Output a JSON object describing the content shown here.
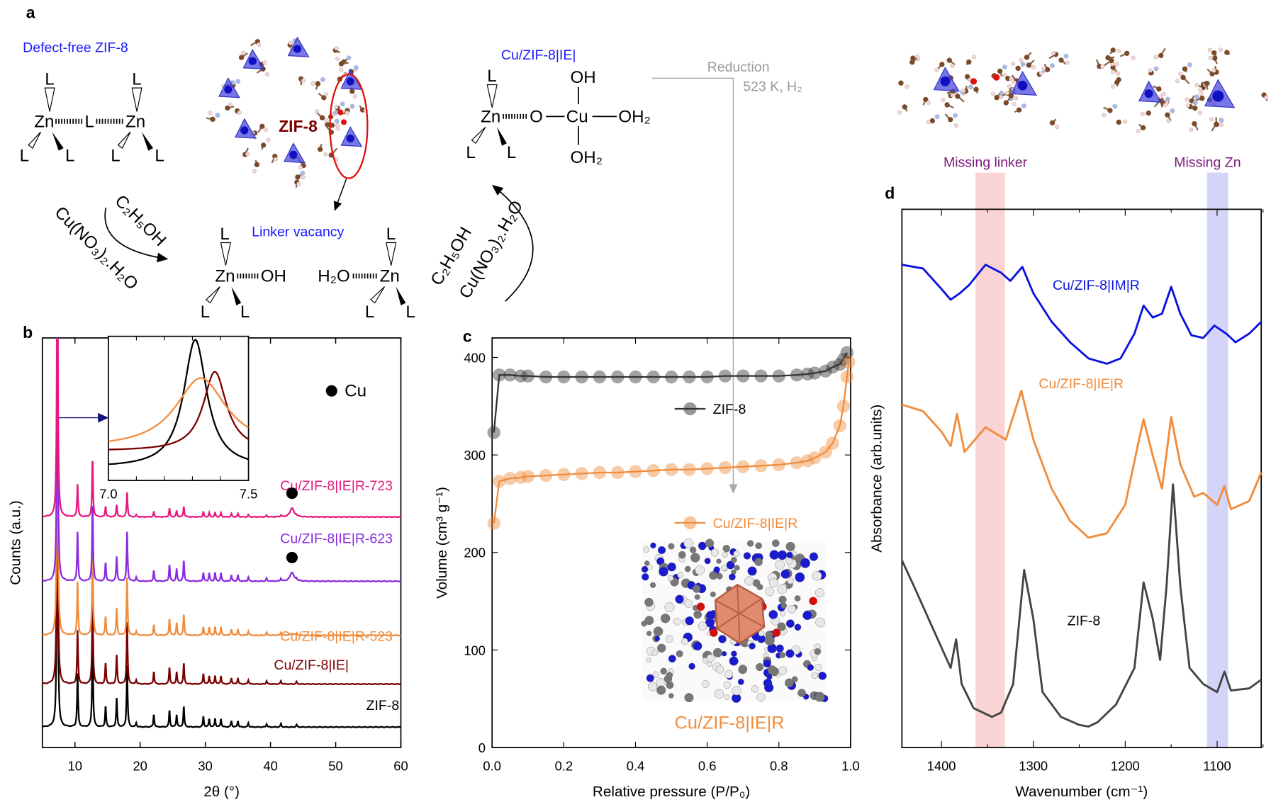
{
  "panels": {
    "a": "a",
    "b": "b",
    "c": "c",
    "d": "d"
  },
  "scheme": {
    "defect_free_title": "Defect-free ZIF-8",
    "zif8_label": "ZIF-8",
    "cu_ie_title": "Cu/ZIF-8|IE|",
    "linker_vacancy": "Linker vacancy",
    "reduction": "Reduction",
    "reduction_conditions": "523 K, H₂",
    "ethanol": "C₂H₅OH",
    "copper_nitrate": "Cu(NO₃)₂.H₂O",
    "zn": "Zn",
    "l": "L",
    "oh": "OH",
    "h2o": "H₂O",
    "o": "O",
    "cu": "Cu",
    "oh2": "OH₂",
    "missing_linker": "Missing linker",
    "missing_zn": "Missing Zn",
    "colors": {
      "blue_text": "#1a1aff",
      "dark_red": "#7a0000",
      "purple": "#7b1a7b",
      "gray": "#999999",
      "vacancy_ring": "#e01010"
    }
  },
  "chart_data": [
    {
      "panel": "b",
      "type": "line",
      "xlabel": "2θ (°)",
      "ylabel": "Counts (a.u.)",
      "xlim": [
        5,
        60
      ],
      "ylim": [
        0,
        100
      ],
      "xticks": [
        10,
        20,
        30,
        40,
        50,
        60
      ],
      "legend": {
        "marker": "filled-circle",
        "label": "Cu",
        "placement": "top-right"
      },
      "peaks_2theta": [
        7.3,
        10.4,
        12.7,
        14.7,
        16.4,
        18.0,
        19.4,
        22.1,
        24.5,
        25.6,
        26.7,
        29.7,
        30.6,
        31.5,
        32.4,
        34.0,
        35.0,
        36.6,
        39.4,
        41.6,
        44.0
      ],
      "series": [
        {
          "name": "ZIF-8",
          "color": "#000000",
          "offset": 5,
          "intensities": [
            80,
            13,
            22,
            5,
            7,
            15,
            1,
            3,
            4,
            3,
            5,
            2.5,
            2,
            2,
            2,
            1.5,
            1.5,
            1,
            0.8,
            0.8,
            0.6
          ],
          "cu_peak": 0
        },
        {
          "name": "Cu/ZIF-8|IE|",
          "color": "#7a0000",
          "offset": 15.5,
          "intensities": [
            80,
            13,
            22,
            5,
            7,
            15,
            1,
            3,
            4,
            3,
            5,
            2.5,
            2,
            2,
            2,
            1.5,
            1.5,
            1,
            0.8,
            0.8,
            0.6
          ],
          "cu_peak": 0
        },
        {
          "name": "Cu/ZIF-8|IE|R-523",
          "color": "#f08c3c",
          "offset": 27.4,
          "intensities": [
            80,
            13,
            22,
            4.5,
            6.5,
            14,
            1,
            2.5,
            4,
            3,
            5,
            2,
            2,
            2,
            2,
            1.5,
            1.5,
            1,
            0.7,
            0.7,
            0.5
          ],
          "cu_peak": 0.4
        },
        {
          "name": "Cu/ZIF-8|IE|R-623",
          "color": "#8a2be2",
          "offset": 40.6,
          "intensities": [
            80,
            12,
            19,
            4.5,
            6,
            12,
            1,
            2.5,
            4,
            3,
            5,
            2,
            2,
            2,
            2,
            1.5,
            1.5,
            1,
            0.7,
            0.7,
            0.5
          ],
          "cu_peak": 2.2
        },
        {
          "name": "Cu/ZIF-8|IE|R-723",
          "color": "#e8187f",
          "offset": 56.3,
          "intensities": [
            80,
            8,
            14,
            2.5,
            3,
            6,
            0.5,
            1.2,
            2,
            1.5,
            2.5,
            1.2,
            1,
            1,
            1,
            0.8,
            0.8,
            0.5,
            0.4,
            0.4,
            0.3
          ],
          "cu_peak": 2.2
        }
      ],
      "cu_markers": [
        {
          "series": "Cu/ZIF-8|IE|R-723",
          "x": 43.3
        },
        {
          "series": "Cu/ZIF-8|IE|R-623",
          "x": 43.3
        }
      ],
      "inset": {
        "xlim": [
          7.0,
          7.5
        ],
        "xtick_labels": [
          "7.0",
          "7.5"
        ],
        "series": [
          {
            "name": "ZIF-8",
            "color": "#000000",
            "center": 7.31,
            "width": 0.05,
            "height": 1.0,
            "base": 0.05
          },
          {
            "name": "Cu/ZIF-8|IE|",
            "color": "#7a0000",
            "center": 7.38,
            "width": 0.05,
            "height": 0.62,
            "base": 0.18
          },
          {
            "name": "Cu/ZIF-8|IE|R-523",
            "color": "#f08c3c",
            "center": 7.33,
            "width": 0.11,
            "height": 0.55,
            "base": 0.2
          }
        ]
      }
    },
    {
      "panel": "c",
      "type": "scatter",
      "xlabel": "Relative pressure (P/P₀)",
      "ylabel": "Volume (cm³ g⁻¹)",
      "xlim": [
        0,
        1
      ],
      "ylim": [
        0,
        420
      ],
      "xticks": [
        "0.0",
        "0.2",
        "0.4",
        "0.6",
        "0.8",
        "1.0"
      ],
      "yticks": [
        0,
        100,
        200,
        300,
        400
      ],
      "series": [
        {
          "name": "ZIF-8",
          "color": "#333333",
          "points": [
            [
              0.005,
              323
            ],
            [
              0.02,
              382
            ],
            [
              0.05,
              382
            ],
            [
              0.08,
              381
            ],
            [
              0.1,
              381
            ],
            [
              0.15,
              380
            ],
            [
              0.2,
              380
            ],
            [
              0.25,
              380
            ],
            [
              0.3,
              380
            ],
            [
              0.35,
              380
            ],
            [
              0.4,
              380
            ],
            [
              0.45,
              380
            ],
            [
              0.5,
              380
            ],
            [
              0.55,
              380
            ],
            [
              0.6,
              380
            ],
            [
              0.65,
              381
            ],
            [
              0.7,
              381
            ],
            [
              0.75,
              381
            ],
            [
              0.8,
              381
            ],
            [
              0.85,
              382
            ],
            [
              0.88,
              383
            ],
            [
              0.9,
              384
            ],
            [
              0.93,
              386
            ],
            [
              0.95,
              390
            ],
            [
              0.97,
              393
            ],
            [
              0.98,
              398
            ],
            [
              0.99,
              405
            ]
          ]
        },
        {
          "name": "Cu/ZIF-8|IE|R",
          "color": "#f08c3c",
          "points": [
            [
              0.005,
              230
            ],
            [
              0.02,
              273
            ],
            [
              0.05,
              276
            ],
            [
              0.08,
              277
            ],
            [
              0.1,
              278
            ],
            [
              0.15,
              279
            ],
            [
              0.2,
              280
            ],
            [
              0.25,
              281
            ],
            [
              0.3,
              282
            ],
            [
              0.35,
              282
            ],
            [
              0.4,
              283
            ],
            [
              0.45,
              284
            ],
            [
              0.5,
              285
            ],
            [
              0.55,
              285
            ],
            [
              0.6,
              286
            ],
            [
              0.65,
              287
            ],
            [
              0.7,
              288
            ],
            [
              0.75,
              289
            ],
            [
              0.8,
              290
            ],
            [
              0.85,
              292
            ],
            [
              0.88,
              294
            ],
            [
              0.9,
              297
            ],
            [
              0.93,
              303
            ],
            [
              0.95,
              312
            ],
            [
              0.97,
              330
            ],
            [
              0.98,
              350
            ],
            [
              0.99,
              380
            ],
            [
              0.995,
              395
            ]
          ]
        }
      ],
      "inset_label": "Cu/ZIF-8|IE|R"
    },
    {
      "panel": "d",
      "type": "line",
      "xlabel": "Wavenumber (cm⁻¹)",
      "ylabel": "Absorbance (arb.units)",
      "xlim": [
        1443,
        1052
      ],
      "ylim": [
        0,
        10
      ],
      "xticks": [
        1400,
        1300,
        1200,
        1100
      ],
      "bands": [
        {
          "label": "Missing linker",
          "range": [
            1363,
            1331
          ],
          "color": "#f7b7b7"
        },
        {
          "label": "Missing Zn",
          "range": [
            1111,
            1088
          ],
          "color": "#b8b8f5"
        }
      ],
      "series": [
        {
          "name": "Cu/ZIF-8|IM|R",
          "color": "#0a14e0",
          "points": [
            [
              1443,
              8.97
            ],
            [
              1420,
              8.9
            ],
            [
              1400,
              8.52
            ],
            [
              1390,
              8.32
            ],
            [
              1380,
              8.44
            ],
            [
              1370,
              8.59
            ],
            [
              1352,
              8.97
            ],
            [
              1335,
              8.82
            ],
            [
              1325,
              8.67
            ],
            [
              1312,
              8.93
            ],
            [
              1300,
              8.44
            ],
            [
              1280,
              7.91
            ],
            [
              1260,
              7.53
            ],
            [
              1240,
              7.23
            ],
            [
              1220,
              7.13
            ],
            [
              1205,
              7.23
            ],
            [
              1190,
              7.69
            ],
            [
              1180,
              8.21
            ],
            [
              1170,
              7.99
            ],
            [
              1160,
              8.06
            ],
            [
              1150,
              8.56
            ],
            [
              1140,
              8.06
            ],
            [
              1128,
              7.66
            ],
            [
              1115,
              7.61
            ],
            [
              1103,
              7.84
            ],
            [
              1090,
              7.69
            ],
            [
              1080,
              7.53
            ],
            [
              1065,
              7.69
            ],
            [
              1052,
              7.91
            ]
          ]
        },
        {
          "name": "Cu/ZIF-8|IE|R",
          "color": "#f08c3c",
          "points": [
            [
              1443,
              6.37
            ],
            [
              1420,
              6.25
            ],
            [
              1400,
              5.87
            ],
            [
              1390,
              5.6
            ],
            [
              1383,
              6.2
            ],
            [
              1375,
              5.49
            ],
            [
              1352,
              5.95
            ],
            [
              1330,
              5.72
            ],
            [
              1313,
              6.63
            ],
            [
              1300,
              5.72
            ],
            [
              1280,
              4.81
            ],
            [
              1260,
              4.21
            ],
            [
              1240,
              3.9
            ],
            [
              1220,
              3.98
            ],
            [
              1200,
              4.51
            ],
            [
              1185,
              5.72
            ],
            [
              1180,
              6.1
            ],
            [
              1170,
              5.42
            ],
            [
              1160,
              4.81
            ],
            [
              1150,
              6.14
            ],
            [
              1140,
              5.26
            ],
            [
              1125,
              4.66
            ],
            [
              1115,
              4.73
            ],
            [
              1100,
              4.51
            ],
            [
              1092,
              4.86
            ],
            [
              1085,
              4.43
            ],
            [
              1065,
              4.58
            ],
            [
              1052,
              5.11
            ]
          ]
        },
        {
          "name": "ZIF-8",
          "color": "#444444",
          "points": [
            [
              1443,
              3.48
            ],
            [
              1430,
              3.0
            ],
            [
              1410,
              2.24
            ],
            [
              1390,
              1.48
            ],
            [
              1384,
              2.01
            ],
            [
              1378,
              1.18
            ],
            [
              1365,
              0.73
            ],
            [
              1345,
              0.57
            ],
            [
              1335,
              0.65
            ],
            [
              1322,
              1.18
            ],
            [
              1310,
              3.3
            ],
            [
              1300,
              2.39
            ],
            [
              1290,
              1.03
            ],
            [
              1270,
              0.57
            ],
            [
              1250,
              0.42
            ],
            [
              1240,
              0.39
            ],
            [
              1230,
              0.47
            ],
            [
              1210,
              0.8
            ],
            [
              1190,
              1.48
            ],
            [
              1180,
              3.07
            ],
            [
              1170,
              2.39
            ],
            [
              1162,
              1.63
            ],
            [
              1155,
              3.0
            ],
            [
              1148,
              4.89
            ],
            [
              1140,
              3.0
            ],
            [
              1130,
              1.48
            ],
            [
              1115,
              1.18
            ],
            [
              1100,
              1.03
            ],
            [
              1092,
              1.41
            ],
            [
              1085,
              1.06
            ],
            [
              1065,
              1.1
            ],
            [
              1052,
              1.26
            ]
          ]
        }
      ]
    }
  ]
}
